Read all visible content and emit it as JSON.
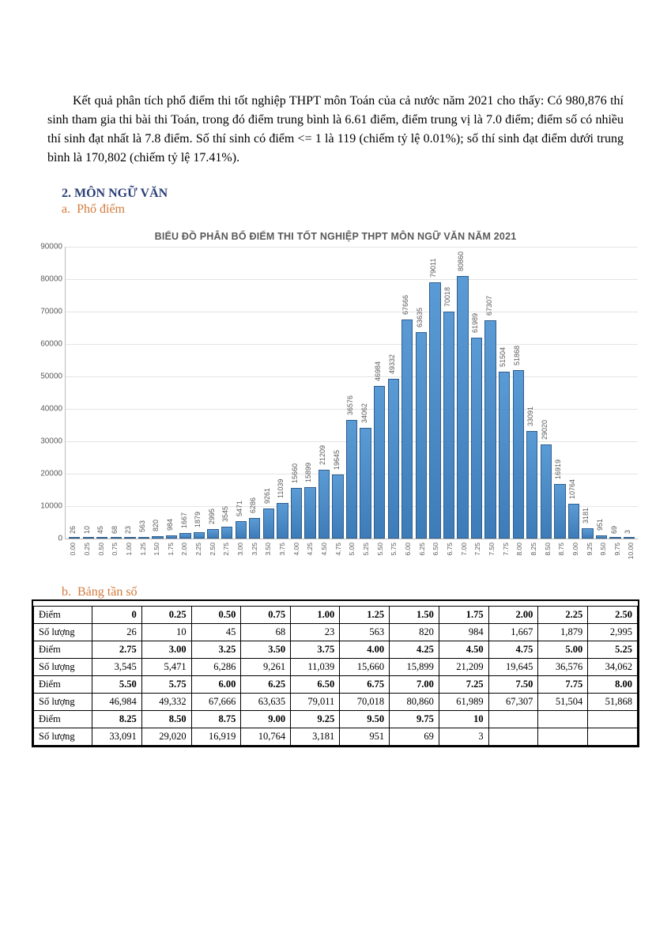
{
  "text": {
    "intro_para": "Kết quả phân tích phổ điểm thi tốt nghiệp THPT môn Toán của cả nước năm 2021 cho thấy: Có 980,876 thí sinh tham gia thi bài thi Toán, trong đó điểm trung bình là 6.61 điểm, điểm trung vị là 7.0 điểm; điểm số có nhiều thí sinh đạt nhất là 7.8 điểm. Số thí sinh có điểm <= 1 là 119 (chiếm tỷ lệ 0.01%); số thí sinh đạt điểm dưới trung bình là 170,802 (chiếm tỷ lệ 17.41%).",
    "section_num": "2.",
    "section_title": "MÔN NGỮ VĂN",
    "sub_a": "a.  Phổ điểm",
    "sub_b": "b.  Bảng tần số",
    "table_label_diem": "Điểm",
    "table_label_sl": "Số lượng"
  },
  "chart": {
    "type": "bar",
    "title": "BIỂU ĐỒ PHÂN BỐ ĐIỂM THI TỐT NGHIỆP THPT MÔN NGỮ VĂN NĂM 2021",
    "ymax": 90000,
    "ytick_step": 10000,
    "bar_color_top": "#5b9bd5",
    "bar_color_bottom": "#3d7cb8",
    "bar_border": "#2e5e8e",
    "grid_color": "#e4e4e4",
    "axis_color": "#bcbcbc",
    "text_color": "#595959",
    "label_fontsize": 9,
    "tick_fontsize": 8.5,
    "title_fontsize": 12.5,
    "categories": [
      "0.00",
      "0.25",
      "0.50",
      "0.75",
      "1.00",
      "1.25",
      "1.50",
      "1.75",
      "2.00",
      "2.25",
      "2.50",
      "2.75",
      "3.00",
      "3.25",
      "3.50",
      "3.75",
      "4.00",
      "4.25",
      "4.50",
      "4.75",
      "5.00",
      "5.25",
      "5.50",
      "5.75",
      "6.00",
      "6.25",
      "6.50",
      "6.75",
      "7.00",
      "7.25",
      "7.50",
      "7.75",
      "8.00",
      "8.25",
      "8.50",
      "8.75",
      "9.00",
      "9.25",
      "9.50",
      "9.75",
      "10.00"
    ],
    "values": [
      26,
      10,
      45,
      68,
      23,
      563,
      820,
      984,
      1667,
      1879,
      2995,
      3545,
      5471,
      6286,
      9261,
      11039,
      15660,
      15899,
      21209,
      19645,
      36576,
      34062,
      46984,
      49332,
      67666,
      63635,
      79011,
      70018,
      80860,
      61989,
      67307,
      51504,
      51868,
      33091,
      29020,
      16919,
      10764,
      3181,
      951,
      69,
      3
    ]
  },
  "freq_table": {
    "row1_diem": [
      "0",
      "0.25",
      "0.50",
      "0.75",
      "1.00",
      "1.25",
      "1.50",
      "1.75",
      "2.00",
      "2.25",
      "2.50"
    ],
    "row1_sl": [
      "26",
      "10",
      "45",
      "68",
      "23",
      "563",
      "820",
      "984",
      "1,667",
      "1,879",
      "2,995"
    ],
    "row2_diem": [
      "2.75",
      "3.00",
      "3.25",
      "3.50",
      "3.75",
      "4.00",
      "4.25",
      "4.50",
      "4.75",
      "5.00",
      "5.25"
    ],
    "row2_sl": [
      "3,545",
      "5,471",
      "6,286",
      "9,261",
      "11,039",
      "15,660",
      "15,899",
      "21,209",
      "19,645",
      "36,576",
      "34,062"
    ],
    "row3_diem": [
      "5.50",
      "5.75",
      "6.00",
      "6.25",
      "6.50",
      "6.75",
      "7.00",
      "7.25",
      "7.50",
      "7.75",
      "8.00"
    ],
    "row3_sl": [
      "46,984",
      "49,332",
      "67,666",
      "63,635",
      "79,011",
      "70,018",
      "80,860",
      "61,989",
      "67,307",
      "51,504",
      "51,868"
    ],
    "row4_diem": [
      "8.25",
      "8.50",
      "8.75",
      "9.00",
      "9.25",
      "9.50",
      "9.75",
      "10",
      "",
      "",
      ""
    ],
    "row4_sl": [
      "33,091",
      "29,020",
      "16,919",
      "10,764",
      "3,181",
      "951",
      "69",
      "3",
      "",
      "",
      ""
    ]
  }
}
